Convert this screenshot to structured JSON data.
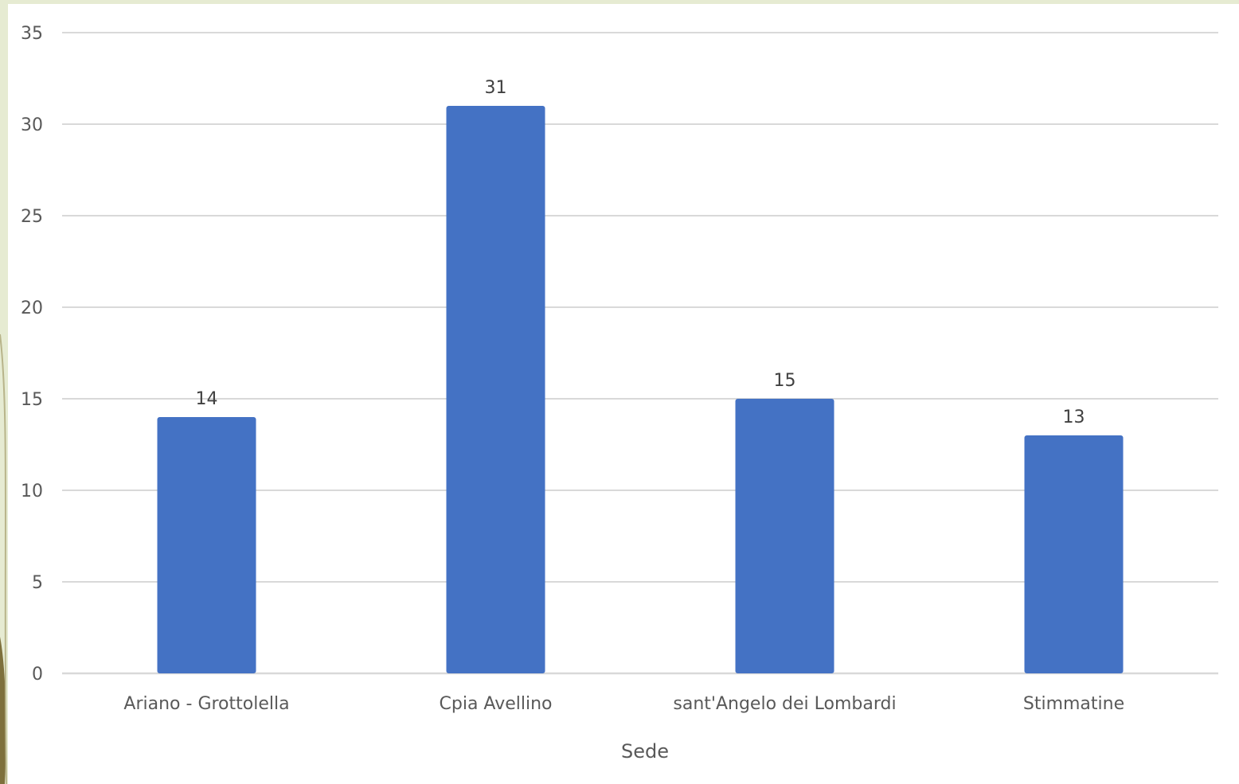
{
  "chart_data": {
    "type": "bar",
    "title": "",
    "xlabel": "Sede",
    "ylabel": "",
    "categories": [
      "Ariano - Grottolella",
      "Cpia Avellino",
      "sant'Angelo dei Lombardi",
      "Stimmatine"
    ],
    "values": [
      14,
      31,
      15,
      13
    ],
    "ylim": [
      0,
      35
    ],
    "yticks": [
      "0",
      "5",
      "10",
      "15",
      "20",
      "25",
      "30",
      "35"
    ],
    "grid": true,
    "legend": "none",
    "bar_color": "#4472c4",
    "gridline_color": "#d9d9d9"
  }
}
